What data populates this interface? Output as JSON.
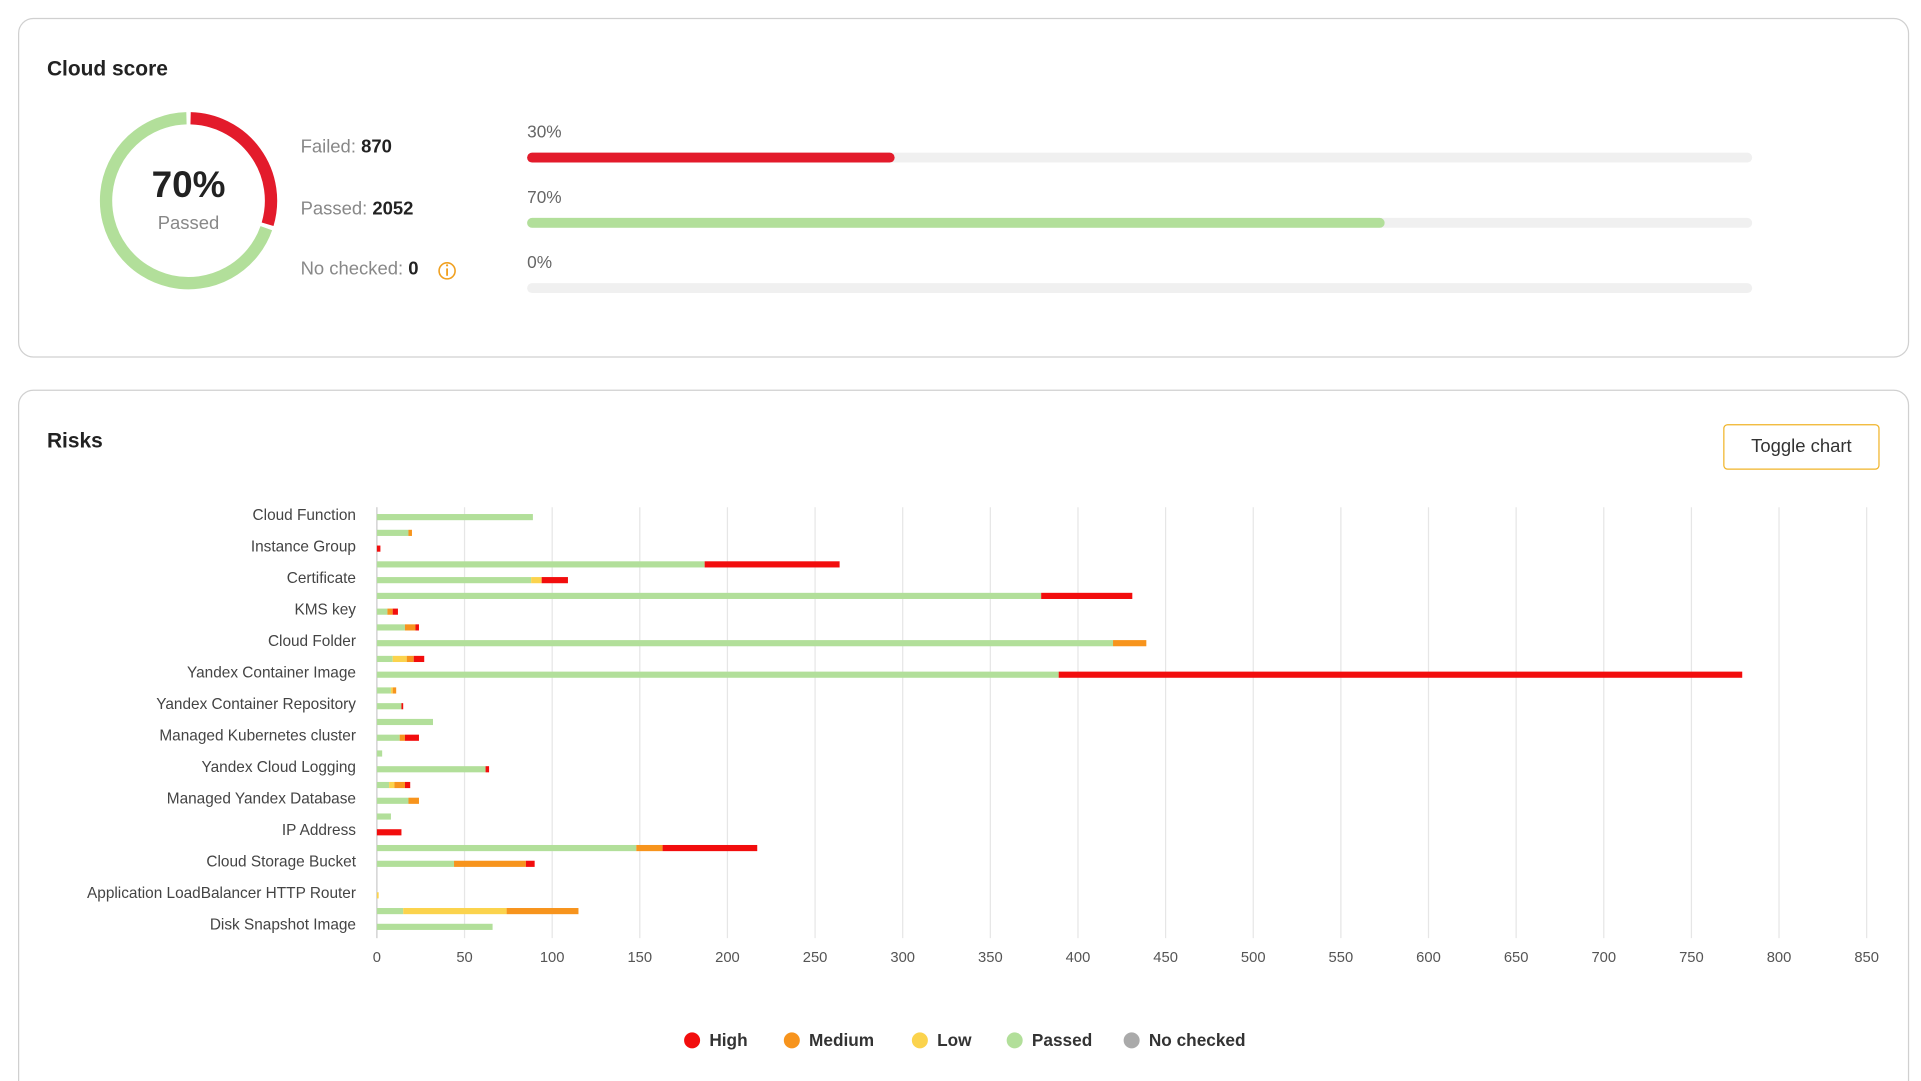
{
  "cloud_score": {
    "title": "Cloud score",
    "score": {
      "value": 70,
      "label": "70%"
    },
    "score_caption": "Passed",
    "failed_label": "Failed:",
    "failed": 870,
    "passed_label": "Passed:",
    "passed": 2052,
    "no_checked_label": "No checked:",
    "no_checked": 0,
    "bars": [
      {
        "value": 30,
        "label": "30%",
        "color": "#e31b2b"
      },
      {
        "value": 70,
        "label": "70%",
        "color": "#b2df9a"
      },
      {
        "value": 0,
        "label": "0%",
        "color": "#b2df9a"
      }
    ]
  },
  "toggle_button": "Toggle chart",
  "chart_data": {
    "type": "bar",
    "orientation": "horizontal",
    "stacked": true,
    "title": "Risks",
    "categories": [
      "Cloud Function",
      null,
      "Instance Group",
      null,
      "Certificate",
      null,
      "KMS key",
      null,
      "Cloud Folder",
      null,
      "Yandex Container Image",
      null,
      "Yandex Container Repository",
      null,
      "Managed Kubernetes cluster",
      null,
      "Yandex Cloud Logging",
      null,
      "Managed Yandex Database",
      null,
      "IP Address",
      null,
      "Cloud Storage Bucket",
      null,
      "Application LoadBalancer HTTP Router",
      null,
      "Disk Snapshot Image"
    ],
    "series": [
      {
        "name": "High",
        "color": "#f20d0d",
        "values": [
          0,
          0,
          2,
          77,
          15,
          52,
          3,
          2,
          0,
          6,
          390,
          0,
          1,
          0,
          8,
          0,
          2,
          3,
          0,
          0,
          14,
          54,
          5,
          0,
          0,
          0,
          0
        ]
      },
      {
        "name": "Medium",
        "color": "#f7941d",
        "values": [
          0,
          2,
          0,
          0,
          0,
          0,
          3,
          6,
          19,
          4,
          0,
          2,
          0,
          0,
          3,
          0,
          0,
          6,
          6,
          0,
          0,
          15,
          41,
          0,
          0,
          41,
          0
        ]
      },
      {
        "name": "Low",
        "color": "#fbd34d",
        "values": [
          0,
          0,
          0,
          0,
          6,
          0,
          0,
          0,
          0,
          8,
          0,
          1,
          0,
          0,
          0,
          0,
          0,
          3,
          0,
          0,
          0,
          0,
          0,
          0,
          1,
          59,
          0
        ]
      },
      {
        "name": "Passed",
        "color": "#b2df9a",
        "values": [
          89,
          18,
          0,
          187,
          88,
          379,
          6,
          16,
          420,
          9,
          389,
          8,
          14,
          32,
          13,
          3,
          62,
          7,
          18,
          8,
          0,
          148,
          44,
          0,
          0,
          15,
          66
        ]
      },
      {
        "name": "No checked",
        "color": "#aaaaaa",
        "values": [
          0,
          0,
          0,
          0,
          0,
          0,
          0,
          0,
          0,
          0,
          0,
          0,
          0,
          0,
          0,
          0,
          0,
          0,
          0,
          0,
          0,
          0,
          0,
          0,
          0,
          0,
          0
        ]
      }
    ],
    "xlim": [
      0,
      850
    ],
    "xticks": [
      0,
      50,
      100,
      150,
      200,
      250,
      300,
      350,
      400,
      450,
      500,
      550,
      600,
      650,
      700,
      750,
      800,
      850
    ],
    "grid": true,
    "legend": "bottom"
  }
}
